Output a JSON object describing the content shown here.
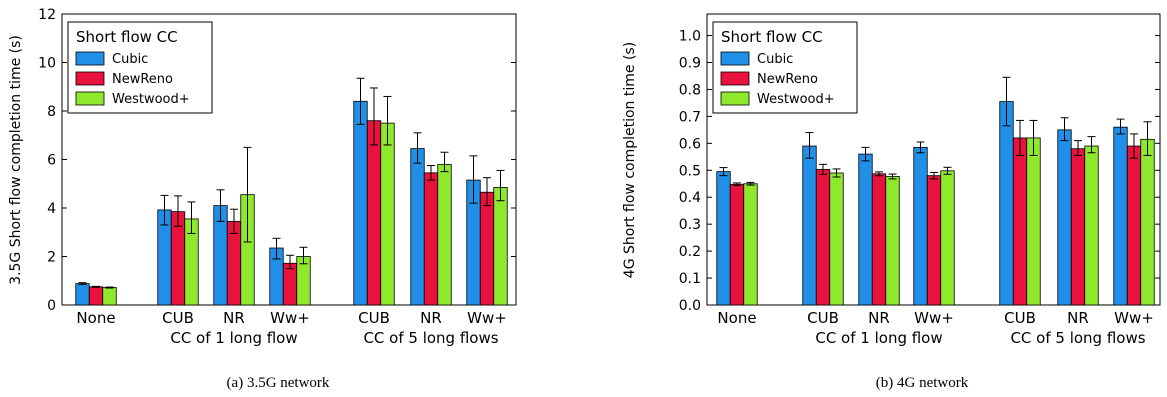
{
  "chart_data": [
    {
      "type": "bar",
      "caption": "(a) 3.5G network",
      "ylabel": "3.5G Short flow completion time (s)",
      "ylim": [
        0,
        12
      ],
      "yticks": [
        "0",
        "2",
        "4",
        "6",
        "8",
        "10",
        "12"
      ],
      "categories": [
        "None",
        "CUB",
        "NR",
        "Ww+",
        "CUB",
        "NR",
        "Ww+"
      ],
      "group_labels": [
        "CC of 1 long flow",
        "CC of 5 long flows"
      ],
      "legend": {
        "title": "Short flow CC",
        "position": "top-left"
      },
      "series": [
        {
          "name": "Cubic",
          "color": "#1f8fe8",
          "values": [
            0.88,
            3.92,
            4.1,
            2.35,
            8.4,
            6.45,
            5.15
          ],
          "err_low": [
            0.85,
            3.3,
            3.45,
            1.9,
            7.45,
            5.85,
            4.2
          ],
          "err_high": [
            0.92,
            4.52,
            4.75,
            2.75,
            9.35,
            7.1,
            6.15
          ]
        },
        {
          "name": "NewReno",
          "color": "#e8123c",
          "values": [
            0.75,
            3.85,
            3.45,
            1.72,
            7.6,
            5.45,
            4.65
          ],
          "err_low": [
            0.73,
            3.25,
            2.95,
            1.5,
            6.6,
            5.15,
            4.1
          ],
          "err_high": [
            0.77,
            4.5,
            3.95,
            2.05,
            8.95,
            5.75,
            5.25
          ]
        },
        {
          "name": "Westwood+",
          "color": "#8ee82c",
          "values": [
            0.72,
            3.55,
            4.55,
            2.0,
            7.5,
            5.8,
            4.85
          ],
          "err_low": [
            0.7,
            2.95,
            2.6,
            1.7,
            6.6,
            5.5,
            4.3
          ],
          "err_high": [
            0.74,
            4.25,
            6.5,
            2.38,
            8.6,
            6.3,
            5.55
          ]
        }
      ],
      "grid": false
    },
    {
      "type": "bar",
      "caption": "(b) 4G network",
      "ylabel": "4G Short flow completion time (s)",
      "ylim": [
        0,
        1.08
      ],
      "yticks": [
        "0.0",
        "0.1",
        "0.2",
        "0.3",
        "0.4",
        "0.5",
        "0.6",
        "0.7",
        "0.8",
        "0.9",
        "1.0"
      ],
      "categories": [
        "None",
        "CUB",
        "NR",
        "Ww+",
        "CUB",
        "NR",
        "Ww+"
      ],
      "group_labels": [
        "CC of 1 long flow",
        "CC of 5 long flows"
      ],
      "legend": {
        "title": "Short flow CC",
        "position": "top-left"
      },
      "series": [
        {
          "name": "Cubic",
          "color": "#1f8fe8",
          "values": [
            0.495,
            0.59,
            0.56,
            0.585,
            0.755,
            0.65,
            0.66
          ],
          "err_low": [
            0.48,
            0.545,
            0.535,
            0.565,
            0.665,
            0.61,
            0.635
          ],
          "err_high": [
            0.51,
            0.64,
            0.585,
            0.605,
            0.845,
            0.695,
            0.69
          ]
        },
        {
          "name": "NewReno",
          "color": "#e8123c",
          "values": [
            0.448,
            0.503,
            0.487,
            0.48,
            0.62,
            0.58,
            0.59
          ],
          "err_low": [
            0.443,
            0.485,
            0.48,
            0.468,
            0.555,
            0.555,
            0.545
          ],
          "err_high": [
            0.453,
            0.522,
            0.494,
            0.492,
            0.685,
            0.61,
            0.635
          ]
        },
        {
          "name": "Westwood+",
          "color": "#8ee82c",
          "values": [
            0.45,
            0.49,
            0.477,
            0.498,
            0.62,
            0.59,
            0.615
          ],
          "err_low": [
            0.445,
            0.475,
            0.468,
            0.485,
            0.555,
            0.565,
            0.555
          ],
          "err_high": [
            0.455,
            0.505,
            0.486,
            0.511,
            0.685,
            0.625,
            0.68
          ]
        }
      ],
      "grid": false
    }
  ]
}
